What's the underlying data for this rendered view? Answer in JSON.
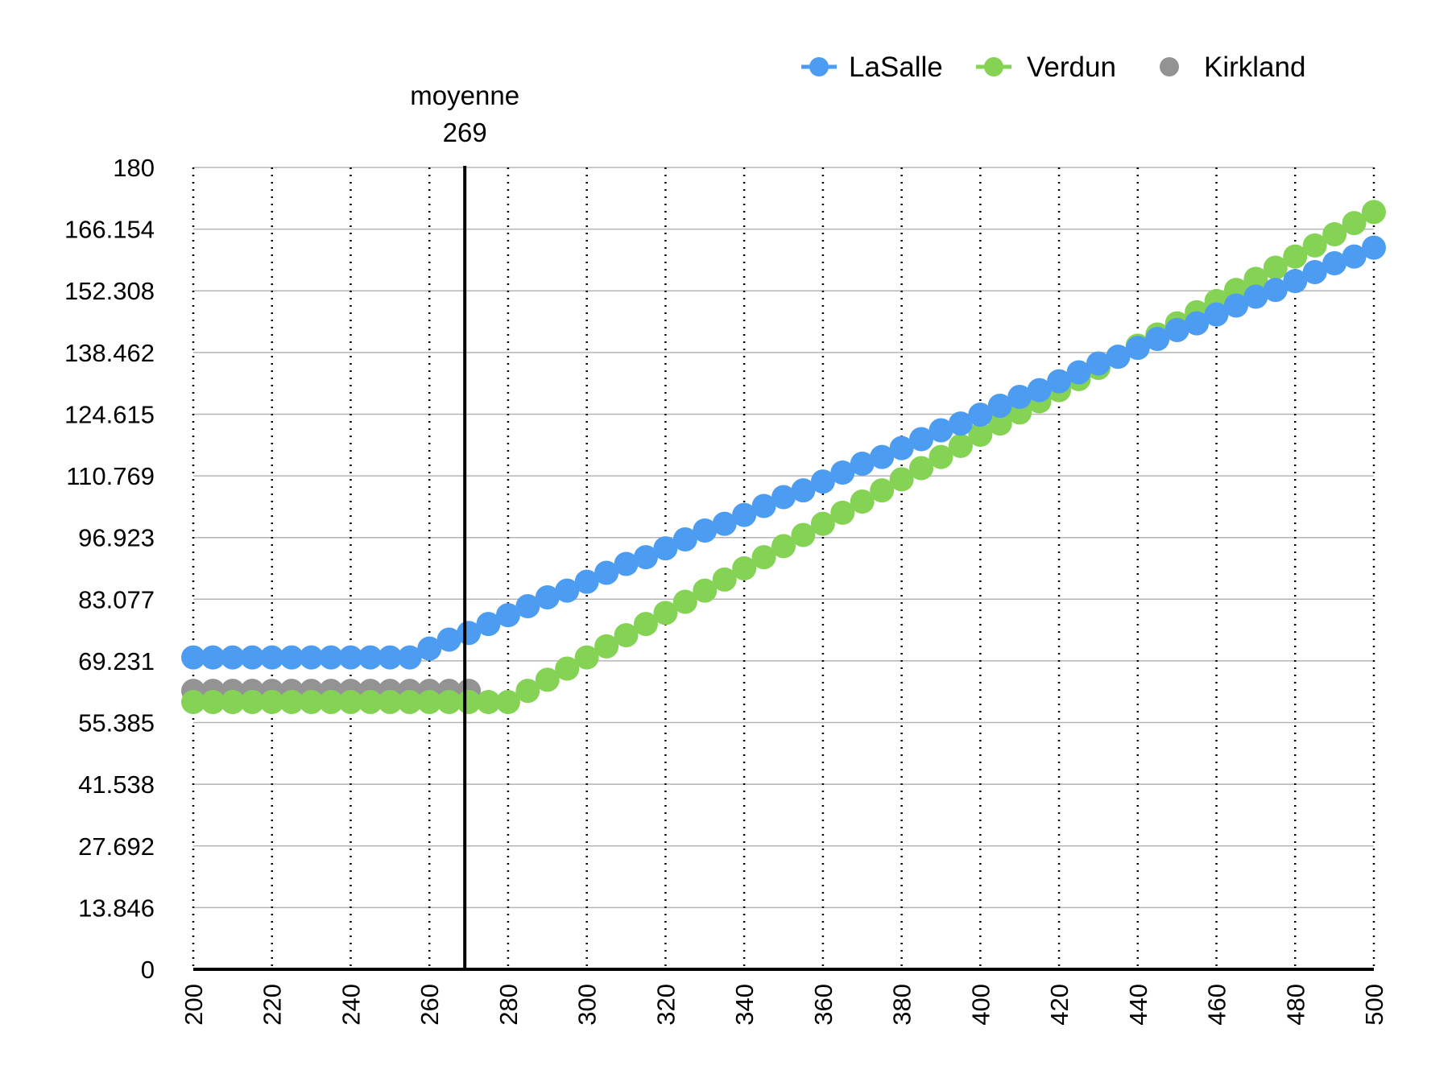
{
  "chart_data": {
    "type": "scatter",
    "title": "",
    "xlabel": "",
    "ylabel": "",
    "xlim": [
      200,
      500
    ],
    "ylim": [
      0,
      180
    ],
    "x_ticks": [
      "200",
      "220",
      "240",
      "260",
      "280",
      "300",
      "320",
      "340",
      "360",
      "380",
      "400",
      "420",
      "440",
      "460",
      "480",
      "500"
    ],
    "y_ticks": [
      "0",
      "13.846",
      "27.692",
      "41.538",
      "55.385",
      "69.231",
      "83.077",
      "96.923",
      "110.769",
      "124.615",
      "138.462",
      "152.308",
      "166.154",
      "180"
    ],
    "grid": {
      "horizontal": "solid",
      "vertical": "dotted"
    },
    "legend_position": "top-right",
    "annotation": {
      "x": 269,
      "line1": "moyenne",
      "line2": "269"
    },
    "series": [
      {
        "name": "LaSalle",
        "color": "#4c9cf2",
        "points": [
          [
            200,
            70
          ],
          [
            205,
            70
          ],
          [
            210,
            70
          ],
          [
            215,
            70
          ],
          [
            220,
            70
          ],
          [
            225,
            70
          ],
          [
            230,
            70
          ],
          [
            235,
            70
          ],
          [
            240,
            70
          ],
          [
            245,
            70
          ],
          [
            250,
            70
          ],
          [
            255,
            70
          ],
          [
            260,
            72
          ],
          [
            265,
            74
          ],
          [
            270,
            75.5
          ],
          [
            275,
            77.5
          ],
          [
            280,
            79.5
          ],
          [
            285,
            81.5
          ],
          [
            290,
            83.5
          ],
          [
            295,
            85
          ],
          [
            300,
            87
          ],
          [
            305,
            89
          ],
          [
            310,
            91
          ],
          [
            315,
            92.5
          ],
          [
            320,
            94.5
          ],
          [
            325,
            96.5
          ],
          [
            330,
            98.5
          ],
          [
            335,
            100
          ],
          [
            340,
            102
          ],
          [
            345,
            104
          ],
          [
            350,
            106
          ],
          [
            355,
            107.5
          ],
          [
            360,
            109.5
          ],
          [
            365,
            111.5
          ],
          [
            370,
            113.5
          ],
          [
            375,
            115
          ],
          [
            380,
            117
          ],
          [
            385,
            119
          ],
          [
            390,
            121
          ],
          [
            395,
            122.5
          ],
          [
            400,
            124.5
          ],
          [
            405,
            126.5
          ],
          [
            410,
            128.5
          ],
          [
            415,
            130
          ],
          [
            420,
            132
          ],
          [
            425,
            134
          ],
          [
            430,
            136
          ],
          [
            435,
            137.5
          ],
          [
            440,
            139.5
          ],
          [
            445,
            141.5
          ],
          [
            450,
            143.5
          ],
          [
            455,
            145
          ],
          [
            460,
            147
          ],
          [
            465,
            149
          ],
          [
            470,
            151
          ],
          [
            475,
            152.5
          ],
          [
            480,
            154.5
          ],
          [
            485,
            156.5
          ],
          [
            490,
            158.5
          ],
          [
            495,
            160
          ],
          [
            500,
            162
          ]
        ]
      },
      {
        "name": "Verdun",
        "color": "#84d355",
        "points": [
          [
            200,
            60
          ],
          [
            205,
            60
          ],
          [
            210,
            60
          ],
          [
            215,
            60
          ],
          [
            220,
            60
          ],
          [
            225,
            60
          ],
          [
            230,
            60
          ],
          [
            235,
            60
          ],
          [
            240,
            60
          ],
          [
            245,
            60
          ],
          [
            250,
            60
          ],
          [
            255,
            60
          ],
          [
            260,
            60
          ],
          [
            265,
            60
          ],
          [
            270,
            60
          ],
          [
            275,
            60
          ],
          [
            280,
            60
          ],
          [
            285,
            62.5
          ],
          [
            290,
            65
          ],
          [
            295,
            67.5
          ],
          [
            300,
            70
          ],
          [
            305,
            72.5
          ],
          [
            310,
            75
          ],
          [
            315,
            77.5
          ],
          [
            320,
            80
          ],
          [
            325,
            82.5
          ],
          [
            330,
            85
          ],
          [
            335,
            87.5
          ],
          [
            340,
            90
          ],
          [
            345,
            92.5
          ],
          [
            350,
            95
          ],
          [
            355,
            97.5
          ],
          [
            360,
            100
          ],
          [
            365,
            102.5
          ],
          [
            370,
            105
          ],
          [
            375,
            107.5
          ],
          [
            380,
            110
          ],
          [
            385,
            112.5
          ],
          [
            390,
            115
          ],
          [
            395,
            117.5
          ],
          [
            400,
            120
          ],
          [
            405,
            122.5
          ],
          [
            410,
            125
          ],
          [
            415,
            127.5
          ],
          [
            420,
            130
          ],
          [
            425,
            132.5
          ],
          [
            430,
            135
          ],
          [
            435,
            137.5
          ],
          [
            440,
            140
          ],
          [
            445,
            142.5
          ],
          [
            450,
            145
          ],
          [
            455,
            147.5
          ],
          [
            460,
            150
          ],
          [
            465,
            152.5
          ],
          [
            470,
            155
          ],
          [
            475,
            157.5
          ],
          [
            480,
            160
          ],
          [
            485,
            162.5
          ],
          [
            490,
            165
          ],
          [
            495,
            167.5
          ],
          [
            500,
            170
          ]
        ]
      },
      {
        "name": "Kirkland",
        "color": "#939393",
        "points": [
          [
            200,
            62.5
          ],
          [
            205,
            62.5
          ],
          [
            210,
            62.5
          ],
          [
            215,
            62.5
          ],
          [
            220,
            62.5
          ],
          [
            225,
            62.5
          ],
          [
            230,
            62.5
          ],
          [
            235,
            62.5
          ],
          [
            240,
            62.5
          ],
          [
            245,
            62.5
          ],
          [
            250,
            62.5
          ],
          [
            255,
            62.5
          ],
          [
            260,
            62.5
          ],
          [
            265,
            62.5
          ],
          [
            270,
            62.5
          ]
        ]
      }
    ]
  }
}
